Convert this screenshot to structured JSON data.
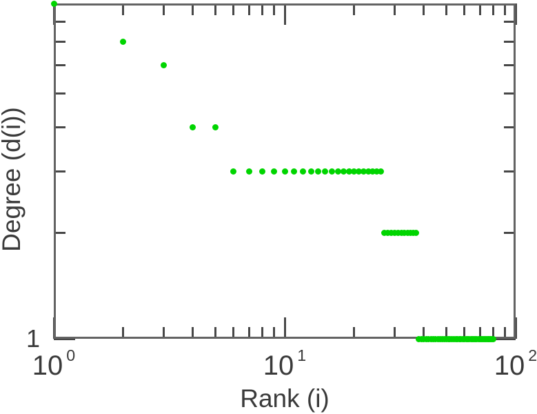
{
  "style": {
    "background": "#ffffff",
    "frame_color": "#636363",
    "tick_color": "#474747",
    "text_color": "#3a3a3a",
    "point_color": "#00d500"
  },
  "axes": {
    "x": {
      "label": "Rank (i)",
      "scale": "log",
      "min": 1,
      "max": 100,
      "major_ticks": [
        1,
        10,
        100
      ],
      "minor_ticks": [
        2,
        3,
        4,
        5,
        6,
        7,
        8,
        9,
        20,
        30,
        40,
        50,
        60,
        70,
        80,
        90
      ],
      "tick_labels": [
        {
          "value": 1,
          "base": "10",
          "exp": "0"
        },
        {
          "value": 10,
          "base": "10",
          "exp": "1"
        },
        {
          "value": 100,
          "base": "10",
          "exp": "2"
        }
      ]
    },
    "y": {
      "label": "Degree (d(i))",
      "scale": "log",
      "min": 1,
      "max": 9,
      "major_ticks": [
        1
      ],
      "minor_ticks": [
        2,
        3,
        4,
        5,
        6,
        7,
        8
      ],
      "tick_labels": [
        {
          "value": 1,
          "text": "1"
        }
      ]
    }
  },
  "chart_data": {
    "type": "scatter",
    "title": "",
    "xlabel": "Rank (i)",
    "ylabel": "Degree (d(i))",
    "x_scale": "log",
    "y_scale": "log",
    "xlim": [
      1,
      100
    ],
    "ylim": [
      1,
      9
    ],
    "grid": false,
    "legend": false,
    "series": [
      {
        "name": "degree-vs-rank",
        "marker": "circle",
        "marker_size_px": 9,
        "color": "#00d500",
        "points": [
          [
            1,
            9
          ],
          [
            2,
            7
          ],
          [
            3,
            6
          ],
          [
            4,
            4
          ],
          [
            5,
            4
          ],
          [
            6,
            3
          ],
          [
            7,
            3
          ],
          [
            8,
            3
          ],
          [
            9,
            3
          ],
          [
            10,
            3
          ],
          [
            11,
            3
          ],
          [
            12,
            3
          ],
          [
            13,
            3
          ],
          [
            14,
            3
          ],
          [
            15,
            3
          ],
          [
            16,
            3
          ],
          [
            17,
            3
          ],
          [
            18,
            3
          ],
          [
            19,
            3
          ],
          [
            20,
            3
          ],
          [
            21,
            3
          ],
          [
            22,
            3
          ],
          [
            23,
            3
          ],
          [
            24,
            3
          ],
          [
            25,
            3
          ],
          [
            26,
            3
          ],
          [
            27,
            2
          ],
          [
            28,
            2
          ],
          [
            29,
            2
          ],
          [
            30,
            2
          ],
          [
            31,
            2
          ],
          [
            32,
            2
          ],
          [
            33,
            2
          ],
          [
            34,
            2
          ],
          [
            35,
            2
          ],
          [
            36,
            2
          ],
          [
            37,
            2
          ],
          [
            38,
            1
          ],
          [
            39,
            1
          ],
          [
            40,
            1
          ],
          [
            41,
            1
          ],
          [
            42,
            1
          ],
          [
            43,
            1
          ],
          [
            44,
            1
          ],
          [
            45,
            1
          ],
          [
            46,
            1
          ],
          [
            47,
            1
          ],
          [
            48,
            1
          ],
          [
            49,
            1
          ],
          [
            50,
            1
          ],
          [
            51,
            1
          ],
          [
            52,
            1
          ],
          [
            53,
            1
          ],
          [
            54,
            1
          ],
          [
            55,
            1
          ],
          [
            56,
            1
          ],
          [
            57,
            1
          ],
          [
            58,
            1
          ],
          [
            59,
            1
          ],
          [
            60,
            1
          ],
          [
            61,
            1
          ],
          [
            62,
            1
          ],
          [
            63,
            1
          ],
          [
            64,
            1
          ],
          [
            65,
            1
          ],
          [
            66,
            1
          ],
          [
            67,
            1
          ],
          [
            68,
            1
          ],
          [
            69,
            1
          ],
          [
            70,
            1
          ],
          [
            71,
            1
          ],
          [
            72,
            1
          ],
          [
            73,
            1
          ],
          [
            74,
            1
          ],
          [
            75,
            1
          ],
          [
            76,
            1
          ],
          [
            77,
            1
          ],
          [
            78,
            1
          ],
          [
            79,
            1
          ],
          [
            80,
            1
          ]
        ]
      }
    ]
  }
}
